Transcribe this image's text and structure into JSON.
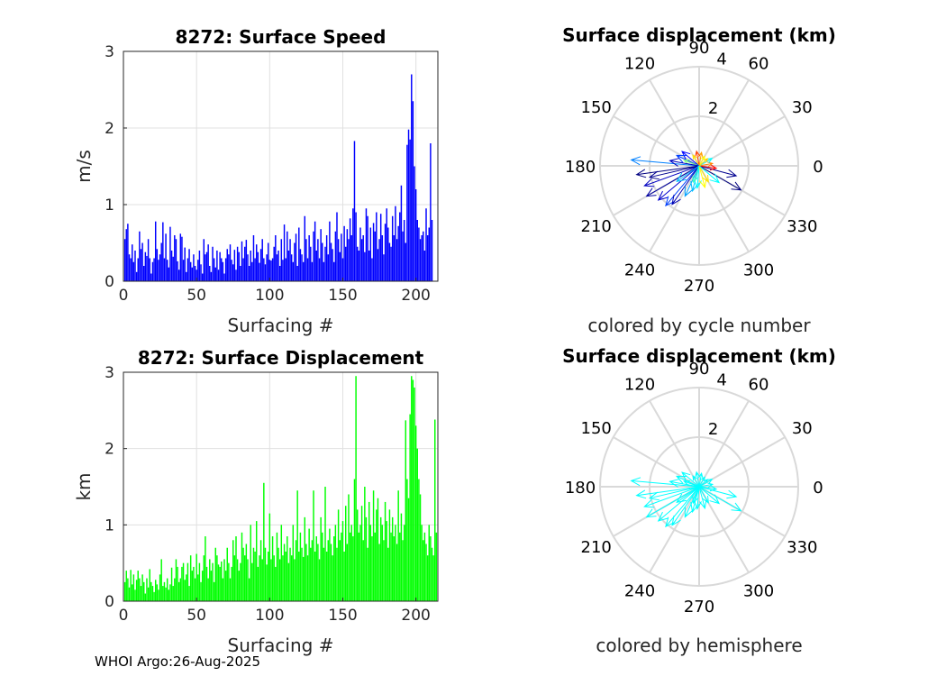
{
  "footer": "WHOI Argo:26-Aug-2025",
  "chart_data": [
    {
      "type": "bar",
      "title": "8272: Surface Speed",
      "xlabel": "Surfacing #",
      "ylabel": "m/s",
      "xlim": [
        0,
        215
      ],
      "ylim": [
        0,
        3
      ],
      "xticks": [
        0,
        50,
        100,
        150,
        200
      ],
      "yticks": [
        0,
        1,
        2,
        3
      ],
      "grid": true,
      "color": "#0000ff",
      "values": [
        0.55,
        0.68,
        0.75,
        0.35,
        0.3,
        0.48,
        0.25,
        0.4,
        0.12,
        0.3,
        0.65,
        0.42,
        0.5,
        0.2,
        0.38,
        0.33,
        0.55,
        0.3,
        0.1,
        0.25,
        0.3,
        0.78,
        0.42,
        0.28,
        0.35,
        0.5,
        0.77,
        0.3,
        0.62,
        0.28,
        0.18,
        0.71,
        0.4,
        0.32,
        0.6,
        0.55,
        0.26,
        0.15,
        0.62,
        0.58,
        0.28,
        0.44,
        0.12,
        0.3,
        0.42,
        0.25,
        0.18,
        0.35,
        0.2,
        0.15,
        0.28,
        0.4,
        0.22,
        0.1,
        0.55,
        0.35,
        0.38,
        0.48,
        0.2,
        0.12,
        0.45,
        0.3,
        0.18,
        0.4,
        0.15,
        0.38,
        0.3,
        0.25,
        0.1,
        0.3,
        0.42,
        0.35,
        0.48,
        0.28,
        0.22,
        0.41,
        0.15,
        0.45,
        0.38,
        0.2,
        0.52,
        0.3,
        0.45,
        0.54,
        0.35,
        0.2,
        0.4,
        0.25,
        0.6,
        0.3,
        0.48,
        0.38,
        0.24,
        0.42,
        0.55,
        0.3,
        0.22,
        0.35,
        0.5,
        0.28,
        0.27,
        0.3,
        0.45,
        0.6,
        0.35,
        0.4,
        0.2,
        0.55,
        0.28,
        0.74,
        0.3,
        0.65,
        0.4,
        0.55,
        0.35,
        0.25,
        0.5,
        0.62,
        0.2,
        0.7,
        0.42,
        0.35,
        0.25,
        0.85,
        0.55,
        0.3,
        0.6,
        0.45,
        0.25,
        0.65,
        0.78,
        0.4,
        0.55,
        0.3,
        0.68,
        0.5,
        0.25,
        0.45,
        0.6,
        0.35,
        0.78,
        0.5,
        0.42,
        0.25,
        0.65,
        0.9,
        0.55,
        0.38,
        0.62,
        0.3,
        0.72,
        0.45,
        0.68,
        0.55,
        0.82,
        0.6,
        0.95,
        1.83,
        0.9,
        0.45,
        0.4,
        0.7,
        0.55,
        0.6,
        0.38,
        0.95,
        0.85,
        0.4,
        0.7,
        0.3,
        0.76,
        0.65,
        0.9,
        0.42,
        0.55,
        0.88,
        0.6,
        0.35,
        0.75,
        0.95,
        0.7,
        0.5,
        0.45,
        0.85,
        0.6,
        0.98,
        0.55,
        0.72,
        0.9,
        1.25,
        0.65,
        0.8,
        0.5,
        1.78,
        1.98,
        1.85,
        2.7,
        2.35,
        1.5,
        1.2,
        0.8,
        0.7,
        0.55,
        0.6,
        0.65,
        0.4,
        0.95,
        0.6,
        0.7,
        1.8,
        0.8
      ],
      "label": "8272: Surface Speed"
    },
    {
      "type": "bar",
      "title": "8272: Surface Displacement",
      "xlabel": "Surfacing #",
      "ylabel": "km",
      "xlim": [
        0,
        215
      ],
      "ylim": [
        0,
        3
      ],
      "xticks": [
        0,
        50,
        100,
        150,
        200
      ],
      "yticks": [
        0,
        1,
        2,
        3
      ],
      "grid": true,
      "color": "#00ff00",
      "values": [
        0.25,
        0.4,
        0.3,
        0.18,
        0.41,
        0.22,
        0.35,
        0.15,
        0.28,
        0.4,
        0.3,
        0.2,
        0.35,
        0.25,
        0.1,
        0.3,
        0.18,
        0.42,
        0.25,
        0.2,
        0.12,
        0.28,
        0.22,
        0.15,
        0.35,
        0.55,
        0.2,
        0.25,
        0.18,
        0.3,
        0.15,
        0.22,
        0.44,
        0.2,
        0.3,
        0.55,
        0.45,
        0.25,
        0.3,
        0.45,
        0.5,
        0.28,
        0.35,
        0.5,
        0.2,
        0.6,
        0.4,
        0.45,
        0.3,
        0.62,
        0.35,
        0.5,
        0.25,
        0.4,
        0.6,
        0.85,
        0.45,
        0.3,
        0.55,
        0.4,
        0.5,
        0.25,
        0.7,
        0.6,
        0.48,
        0.45,
        0.52,
        0.3,
        0.55,
        0.4,
        0.7,
        0.5,
        0.3,
        0.45,
        0.8,
        0.6,
        0.85,
        0.55,
        0.4,
        0.5,
        0.9,
        0.7,
        0.6,
        0.75,
        0.55,
        0.3,
        1.0,
        0.5,
        0.7,
        0.65,
        1.05,
        0.45,
        0.6,
        0.8,
        0.55,
        1.55,
        0.7,
        0.48,
        0.65,
        1.15,
        0.55,
        0.85,
        0.6,
        0.45,
        0.9,
        0.7,
        0.55,
        1.0,
        0.6,
        0.75,
        0.65,
        0.85,
        0.5,
        0.7,
        0.6,
        1.0,
        0.55,
        0.8,
        1.45,
        0.65,
        0.9,
        0.7,
        0.58,
        1.1,
        0.75,
        0.6,
        0.95,
        0.7,
        0.8,
        1.45,
        0.65,
        0.85,
        0.75,
        0.55,
        1.1,
        0.9,
        0.7,
        1.5,
        0.65,
        0.8,
        0.95,
        0.75,
        0.6,
        0.85,
        1.0,
        0.7,
        1.2,
        0.8,
        0.9,
        1.05,
        0.65,
        1.25,
        0.75,
        1.4,
        0.9,
        1.0,
        0.85,
        1.6,
        2.95,
        1.2,
        0.9,
        1.0,
        1.25,
        0.8,
        1.5,
        1.1,
        0.7,
        1.3,
        1.0,
        0.85,
        1.45,
        0.9,
        1.2,
        1.35,
        0.75,
        1.1,
        1.0,
        0.8,
        1.3,
        1.05,
        0.7,
        1.2,
        0.9,
        1.1,
        0.85,
        1.0,
        0.75,
        1.45,
        0.9,
        1.15,
        0.8,
        1.0,
        2.37,
        1.6,
        1.35,
        2.45,
        2.95,
        2.9,
        2.8,
        2.3,
        2.0,
        1.6,
        1.4,
        1.0,
        0.8,
        0.9,
        0.75,
        0.6,
        1.0,
        0.85,
        0.7,
        0.6,
        2.38,
        0.9
      ],
      "label": "8272: Surface Displacement"
    },
    {
      "type": "polar",
      "title": "Surface displacement (km)",
      "subtitle": "colored by cycle number",
      "rlim": [
        0,
        4
      ],
      "rticks": [
        2,
        4
      ],
      "angle_ticks": [
        0,
        30,
        60,
        90,
        120,
        150,
        180,
        210,
        240,
        270,
        300,
        330
      ],
      "arrows": [
        {
          "theta": 188,
          "r": 2.55,
          "color": "#000080"
        },
        {
          "theta": 175,
          "r": 2.75,
          "color": "#0080ff"
        },
        {
          "theta": 200,
          "r": 2.35,
          "color": "#0000c0"
        },
        {
          "theta": 193,
          "r": 2.05,
          "color": "#000090"
        },
        {
          "theta": 210,
          "r": 2.45,
          "color": "#0000a0"
        },
        {
          "theta": 220,
          "r": 2.15,
          "color": "#0000d0"
        },
        {
          "theta": 230,
          "r": 2.1,
          "color": "#0040ff"
        },
        {
          "theta": 235,
          "r": 1.9,
          "color": "#0000b0"
        },
        {
          "theta": 245,
          "r": 1.35,
          "color": "#00a0ff"
        },
        {
          "theta": 255,
          "r": 1.05,
          "color": "#00c0ff"
        },
        {
          "theta": 265,
          "r": 0.9,
          "color": "#00ffff"
        },
        {
          "theta": 285,
          "r": 0.9,
          "color": "#ffff00"
        },
        {
          "theta": 300,
          "r": 0.75,
          "color": "#ffe000"
        },
        {
          "theta": 330,
          "r": 1.95,
          "color": "#000080"
        },
        {
          "theta": 345,
          "r": 1.55,
          "color": "#000090"
        },
        {
          "theta": 352,
          "r": 0.7,
          "color": "#ff0000"
        },
        {
          "theta": 10,
          "r": 0.55,
          "color": "#ff8000"
        },
        {
          "theta": 30,
          "r": 0.6,
          "color": "#00ffff"
        },
        {
          "theta": 40,
          "r": 0.45,
          "color": "#ffd000"
        },
        {
          "theta": 60,
          "r": 0.45,
          "color": "#ffff00"
        },
        {
          "theta": 80,
          "r": 0.55,
          "color": "#ffa000"
        },
        {
          "theta": 100,
          "r": 0.6,
          "color": "#ff4000"
        },
        {
          "theta": 120,
          "r": 0.5,
          "color": "#ffe000"
        },
        {
          "theta": 140,
          "r": 0.9,
          "color": "#0000ff"
        },
        {
          "theta": 155,
          "r": 1.0,
          "color": "#0040ff"
        },
        {
          "theta": 160,
          "r": 0.65,
          "color": "#80ff80"
        },
        {
          "theta": 170,
          "r": 1.2,
          "color": "#0000c0"
        },
        {
          "theta": 215,
          "r": 1.1,
          "color": "#00c0ff"
        },
        {
          "theta": 250,
          "r": 0.7,
          "color": "#40ffc0"
        },
        {
          "theta": 320,
          "r": 1.05,
          "color": "#00ffff"
        }
      ]
    },
    {
      "type": "polar",
      "title": "Surface displacement (km)",
      "subtitle": "colored by hemisphere",
      "rlim": [
        0,
        4
      ],
      "rticks": [
        2,
        4
      ],
      "angle_ticks": [
        0,
        30,
        60,
        90,
        120,
        150,
        180,
        210,
        240,
        270,
        300,
        330
      ],
      "arrows": [
        {
          "theta": 188,
          "r": 2.55,
          "color": "#00ffff"
        },
        {
          "theta": 175,
          "r": 2.75,
          "color": "#00ffff"
        },
        {
          "theta": 200,
          "r": 2.35,
          "color": "#00ffff"
        },
        {
          "theta": 193,
          "r": 2.05,
          "color": "#00ffff"
        },
        {
          "theta": 210,
          "r": 2.45,
          "color": "#00ffff"
        },
        {
          "theta": 220,
          "r": 2.15,
          "color": "#00ffff"
        },
        {
          "theta": 230,
          "r": 2.1,
          "color": "#00ffff"
        },
        {
          "theta": 235,
          "r": 1.9,
          "color": "#00ffff"
        },
        {
          "theta": 245,
          "r": 1.35,
          "color": "#00ffff"
        },
        {
          "theta": 255,
          "r": 1.05,
          "color": "#00ffff"
        },
        {
          "theta": 265,
          "r": 0.9,
          "color": "#00ffff"
        },
        {
          "theta": 285,
          "r": 0.9,
          "color": "#00ffff"
        },
        {
          "theta": 300,
          "r": 0.75,
          "color": "#00ffff"
        },
        {
          "theta": 330,
          "r": 1.95,
          "color": "#00ffff"
        },
        {
          "theta": 345,
          "r": 1.55,
          "color": "#00ffff"
        },
        {
          "theta": 352,
          "r": 0.7,
          "color": "#00ffff"
        },
        {
          "theta": 10,
          "r": 0.55,
          "color": "#00ffff"
        },
        {
          "theta": 30,
          "r": 0.6,
          "color": "#00ffff"
        },
        {
          "theta": 40,
          "r": 0.45,
          "color": "#00ffff"
        },
        {
          "theta": 60,
          "r": 0.45,
          "color": "#00ffff"
        },
        {
          "theta": 80,
          "r": 0.55,
          "color": "#00ffff"
        },
        {
          "theta": 100,
          "r": 0.6,
          "color": "#00ffff"
        },
        {
          "theta": 120,
          "r": 0.5,
          "color": "#00ffff"
        },
        {
          "theta": 140,
          "r": 0.9,
          "color": "#00ffff"
        },
        {
          "theta": 155,
          "r": 1.0,
          "color": "#00ffff"
        },
        {
          "theta": 160,
          "r": 0.65,
          "color": "#00ffff"
        },
        {
          "theta": 170,
          "r": 1.2,
          "color": "#00ffff"
        },
        {
          "theta": 215,
          "r": 1.1,
          "color": "#00ffff"
        },
        {
          "theta": 250,
          "r": 0.7,
          "color": "#00ffff"
        },
        {
          "theta": 320,
          "r": 1.05,
          "color": "#00ffff"
        }
      ]
    }
  ]
}
